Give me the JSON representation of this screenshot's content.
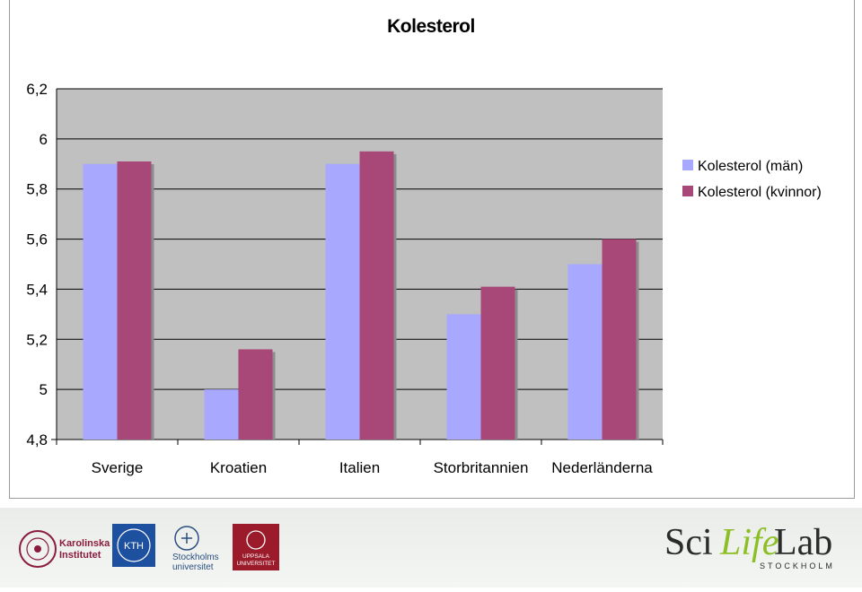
{
  "chart_data": {
    "type": "bar",
    "title": "Kolesterol",
    "categories": [
      "Sverige",
      "Kroatien",
      "Italien",
      "Storbritannien",
      "Nederländerna"
    ],
    "series": [
      {
        "name": "Kolesterol (män)",
        "values": [
          5.9,
          5.0,
          5.9,
          5.3,
          5.5
        ],
        "color": "#a8a8ff"
      },
      {
        "name": "Kolesterol (kvinnor)",
        "values": [
          5.91,
          5.16,
          5.95,
          5.41,
          5.6
        ],
        "color": "#a84878"
      }
    ],
    "y_ticks": [
      "6,2",
      "6",
      "5,8",
      "5,6",
      "5,4",
      "5,2",
      "5",
      "4,8"
    ],
    "ylim": [
      4.8,
      6.2
    ],
    "plot_background": "#c0c0c0",
    "grid": true,
    "legend_position": "right"
  },
  "footer": {
    "logos": [
      {
        "name": "karolinska-logo",
        "lines": [
          "Karolinska",
          "Institutet"
        ]
      },
      {
        "name": "kth-logo",
        "lines": [
          "KTH"
        ]
      },
      {
        "name": "stockholms-universitet-logo",
        "lines": [
          "Stockholms",
          "universitet"
        ]
      },
      {
        "name": "uppsala-logo",
        "lines": [
          "UPPSALA",
          "UNIVERSITET"
        ]
      }
    ],
    "brand": {
      "part1": "Sci",
      "part2": "Life",
      "part3": "Lab",
      "sub": "STOCKHOLM"
    }
  }
}
